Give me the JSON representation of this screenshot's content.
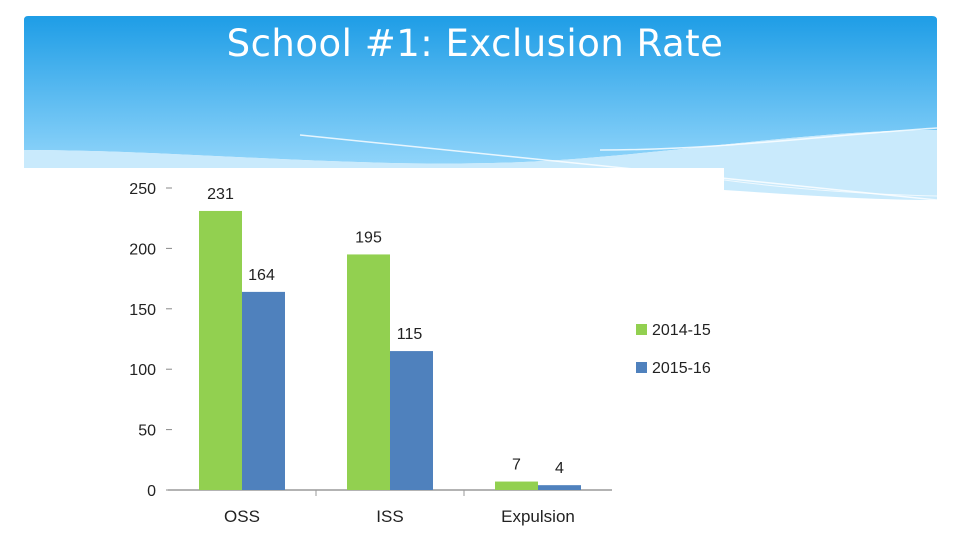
{
  "slide": {
    "title": "School #1: Exclusion Rate"
  },
  "colors": {
    "header_top": "#1E9DE6",
    "header_bottom": "#8FD4FA",
    "series_1": "#92D050",
    "series_2": "#4F81BD"
  },
  "chart_data": {
    "type": "bar",
    "categories": [
      "OSS",
      "ISS",
      "Expulsion"
    ],
    "series": [
      {
        "name": "2014-15",
        "values": [
          231,
          195,
          7
        ]
      },
      {
        "name": "2015-16",
        "values": [
          164,
          115,
          4
        ]
      }
    ],
    "ylim": [
      0,
      250
    ],
    "yticks": [
      0,
      50,
      100,
      150,
      200,
      250
    ],
    "legend_position": "right",
    "grid": false,
    "data_labels": true,
    "title": "",
    "xlabel": "",
    "ylabel": ""
  }
}
